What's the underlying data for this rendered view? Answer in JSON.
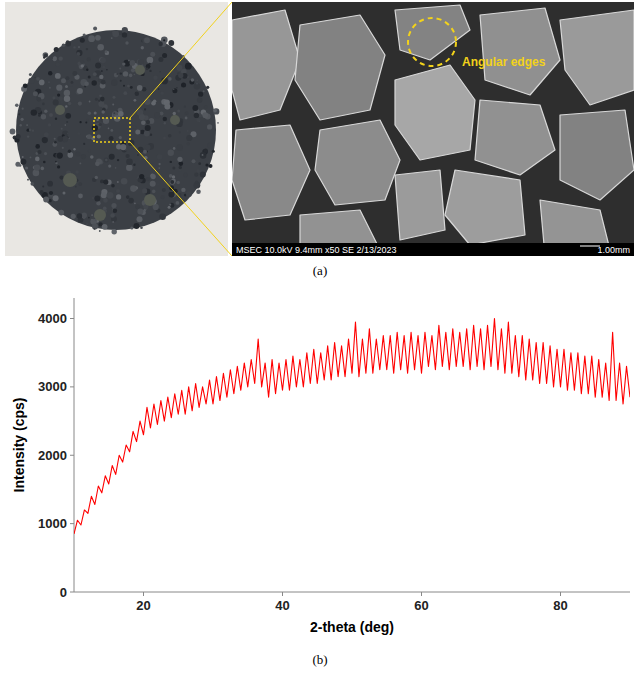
{
  "figure": {
    "panel_a": {
      "label": "(a)",
      "annotation": "Angular edges",
      "sem_caption": "MSEC 10.0kV 9.4mm x50 SE 2/13/2023",
      "scale_bar": "1.00mm"
    },
    "panel_b_label": "(b)"
  },
  "chart_data": {
    "type": "line",
    "x_label": "2-theta (deg)",
    "y_label": "Intensity (cps)",
    "color": "#ff0000",
    "xlim": [
      10,
      90
    ],
    "xticks": [
      20,
      40,
      60,
      80
    ],
    "ylim": [
      0,
      4300
    ],
    "yticks": [
      0,
      1000,
      2000,
      3000,
      4000
    ],
    "grid": false,
    "x": [
      10.0,
      10.5,
      11.0,
      11.5,
      12.0,
      12.5,
      13.0,
      13.5,
      14.0,
      14.5,
      15.0,
      15.5,
      16.0,
      16.5,
      17.0,
      17.5,
      18.0,
      18.5,
      19.0,
      19.5,
      20.0,
      20.5,
      21.0,
      21.5,
      22.0,
      22.5,
      23.0,
      23.5,
      24.0,
      24.5,
      25.0,
      25.5,
      26.0,
      26.5,
      27.0,
      27.5,
      28.0,
      28.5,
      29.0,
      29.5,
      30.0,
      30.5,
      31.0,
      31.5,
      32.0,
      32.5,
      33.0,
      33.5,
      34.0,
      34.5,
      35.0,
      35.5,
      36.0,
      36.5,
      37.0,
      37.5,
      38.0,
      38.5,
      39.0,
      39.5,
      40.0,
      40.5,
      41.0,
      41.5,
      42.0,
      42.5,
      43.0,
      43.5,
      44.0,
      44.5,
      45.0,
      45.5,
      46.0,
      46.5,
      47.0,
      47.5,
      48.0,
      48.5,
      49.0,
      49.5,
      50.0,
      50.5,
      51.0,
      51.5,
      52.0,
      52.5,
      53.0,
      53.5,
      54.0,
      54.5,
      55.0,
      55.5,
      56.0,
      56.5,
      57.0,
      57.5,
      58.0,
      58.5,
      59.0,
      59.5,
      60.0,
      60.5,
      61.0,
      61.5,
      62.0,
      62.5,
      63.0,
      63.5,
      64.0,
      64.5,
      65.0,
      65.5,
      66.0,
      66.5,
      67.0,
      67.5,
      68.0,
      68.5,
      69.0,
      69.5,
      70.0,
      70.5,
      71.0,
      71.5,
      72.0,
      72.5,
      73.0,
      73.5,
      74.0,
      74.5,
      75.0,
      75.5,
      76.0,
      76.5,
      77.0,
      77.5,
      78.0,
      78.5,
      79.0,
      79.5,
      80.0,
      80.5,
      81.0,
      81.5,
      82.0,
      82.5,
      83.0,
      83.5,
      84.0,
      84.5,
      85.0,
      85.5,
      86.0,
      86.5,
      87.0,
      87.5,
      88.0,
      88.5,
      89.0,
      89.5,
      90.0
    ],
    "values": [
      850,
      1050,
      980,
      1200,
      1150,
      1400,
      1280,
      1550,
      1450,
      1700,
      1580,
      1850,
      1720,
      2000,
      1900,
      2150,
      2050,
      2350,
      2200,
      2500,
      2300,
      2700,
      2400,
      2750,
      2450,
      2800,
      2500,
      2850,
      2550,
      2900,
      2600,
      2950,
      2600,
      3000,
      2650,
      3050,
      2700,
      3000,
      2750,
      3100,
      2750,
      3150,
      2800,
      3200,
      2850,
      3250,
      2900,
      3300,
      2950,
      3350,
      3000,
      3400,
      3050,
      3700,
      3000,
      3350,
      2850,
      3400,
      2900,
      3350,
      2950,
      3400,
      2950,
      3450,
      3000,
      3400,
      3000,
      3500,
      3050,
      3550,
      3050,
      3500,
      3100,
      3600,
      3100,
      3650,
      3150,
      3600,
      3150,
      3700,
      3200,
      3950,
      3150,
      3700,
      3200,
      3850,
      3200,
      3700,
      3250,
      3750,
      3250,
      3750,
      3200,
      3800,
      3250,
      3750,
      3200,
      3800,
      3250,
      3750,
      3200,
      3800,
      3300,
      3750,
      3250,
      3900,
      3300,
      3800,
      3250,
      3850,
      3300,
      3800,
      3300,
      3850,
      3250,
      3900,
      3300,
      3850,
      3250,
      3900,
      3300,
      4000,
      3250,
      3850,
      3200,
      3950,
      3200,
      3750,
      3150,
      3750,
      3100,
      3700,
      3100,
      3650,
      3050,
      3650,
      3050,
      3600,
      3000,
      3550,
      3000,
      3550,
      2950,
      3500,
      2950,
      3500,
      2900,
      3450,
      2900,
      3450,
      2850,
      3400,
      2850,
      3350,
      2800,
      3800,
      2800,
      3350,
      2750,
      3300,
      2850
    ]
  }
}
